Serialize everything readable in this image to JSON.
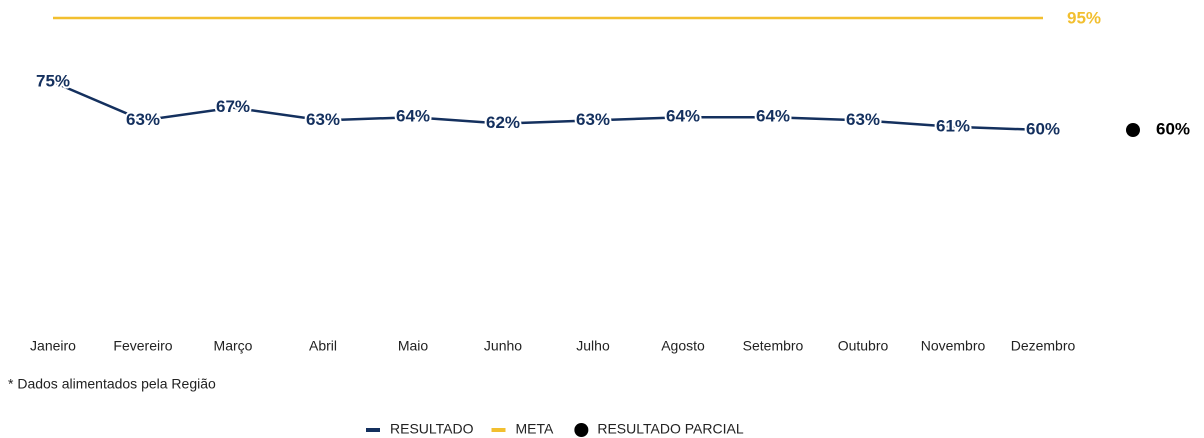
{
  "chart_data": {
    "type": "line",
    "categories": [
      "Janeiro",
      "Fevereiro",
      "Março",
      "Abril",
      "Maio",
      "Junho",
      "Julho",
      "Agosto",
      "Setembro",
      "Outubro",
      "Novembro",
      "Dezembro"
    ],
    "series": [
      {
        "name": "RESULTADO",
        "color": "#14305e",
        "values": [
          75,
          63,
          67,
          63,
          64,
          62,
          63,
          64,
          64,
          63,
          61,
          60
        ],
        "value_labels": [
          "75%",
          "63%",
          "67%",
          "63%",
          "64%",
          "62%",
          "63%",
          "64%",
          "64%",
          "63%",
          "61%",
          "60%"
        ]
      }
    ],
    "meta": {
      "name": "META",
      "color": "#f2bf2f",
      "value": 95,
      "label": "95%"
    },
    "partial": {
      "name": "RESULTADO PARCIAL",
      "color": "#000000",
      "value": 60,
      "label": "60%"
    },
    "ylim": [
      0,
      100
    ],
    "note": "* Dados alimentados pela Região"
  }
}
